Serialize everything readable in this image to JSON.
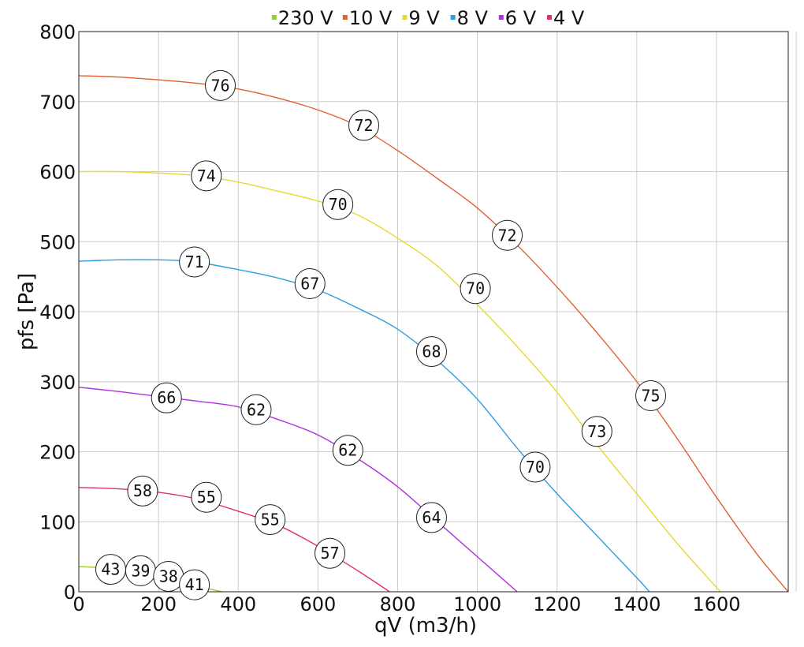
{
  "chart_data": {
    "type": "line",
    "xlabel": "qV (m3/h)",
    "ylabel": "pfs [Pa]",
    "xlim": [
      0,
      1780
    ],
    "ylim": [
      0,
      800
    ],
    "xticks": [
      0,
      200,
      400,
      600,
      800,
      1000,
      1200,
      1400,
      1600
    ],
    "yticks": [
      0,
      100,
      200,
      300,
      400,
      500,
      600,
      700,
      800
    ],
    "grid": true,
    "legend_position": "top-center",
    "series": [
      {
        "name": "230 V",
        "color": "#9acd32",
        "points": [
          [
            0,
            36
          ],
          [
            60,
            34
          ],
          [
            120,
            30
          ],
          [
            200,
            22
          ],
          [
            280,
            10
          ],
          [
            360,
            0
          ]
        ],
        "labels": [
          {
            "x": 80,
            "y": 32,
            "text": "43"
          },
          {
            "x": 155,
            "y": 30,
            "text": "39"
          },
          {
            "x": 225,
            "y": 22,
            "text": "38"
          },
          {
            "x": 290,
            "y": 10,
            "text": "41"
          }
        ]
      },
      {
        "name": "10 V",
        "color": "#e06030",
        "points": [
          [
            0,
            737
          ],
          [
            100,
            735
          ],
          [
            200,
            731
          ],
          [
            300,
            726
          ],
          [
            400,
            718
          ],
          [
            500,
            705
          ],
          [
            600,
            688
          ],
          [
            700,
            665
          ],
          [
            800,
            630
          ],
          [
            900,
            590
          ],
          [
            1000,
            548
          ],
          [
            1100,
            495
          ],
          [
            1200,
            435
          ],
          [
            1300,
            370
          ],
          [
            1400,
            300
          ],
          [
            1500,
            220
          ],
          [
            1600,
            135
          ],
          [
            1700,
            55
          ],
          [
            1780,
            0
          ]
        ],
        "labels": [
          {
            "x": 355,
            "y": 723,
            "text": "76"
          },
          {
            "x": 715,
            "y": 666,
            "text": "72"
          },
          {
            "x": 1075,
            "y": 509,
            "text": "72"
          },
          {
            "x": 1435,
            "y": 280,
            "text": "75"
          }
        ]
      },
      {
        "name": "9 V",
        "color": "#e8d830",
        "points": [
          [
            0,
            600
          ],
          [
            100,
            600
          ],
          [
            200,
            598
          ],
          [
            300,
            594
          ],
          [
            400,
            585
          ],
          [
            500,
            572
          ],
          [
            600,
            558
          ],
          [
            700,
            538
          ],
          [
            800,
            505
          ],
          [
            900,
            465
          ],
          [
            1000,
            410
          ],
          [
            1100,
            350
          ],
          [
            1200,
            285
          ],
          [
            1300,
            210
          ],
          [
            1400,
            140
          ],
          [
            1500,
            70
          ],
          [
            1610,
            0
          ]
        ],
        "labels": [
          {
            "x": 320,
            "y": 594,
            "text": "74"
          },
          {
            "x": 650,
            "y": 553,
            "text": "70"
          },
          {
            "x": 995,
            "y": 433,
            "text": "70"
          },
          {
            "x": 1300,
            "y": 229,
            "text": "73"
          }
        ]
      },
      {
        "name": "8 V",
        "color": "#2e9ce0",
        "points": [
          [
            0,
            472
          ],
          [
            100,
            474
          ],
          [
            200,
            474
          ],
          [
            290,
            471
          ],
          [
            400,
            460
          ],
          [
            500,
            448
          ],
          [
            600,
            431
          ],
          [
            700,
            405
          ],
          [
            800,
            375
          ],
          [
            900,
            330
          ],
          [
            1000,
            275
          ],
          [
            1100,
            205
          ],
          [
            1200,
            140
          ],
          [
            1300,
            80
          ],
          [
            1400,
            20
          ],
          [
            1432,
            0
          ]
        ],
        "labels": [
          {
            "x": 290,
            "y": 471,
            "text": "71"
          },
          {
            "x": 580,
            "y": 440,
            "text": "67"
          },
          {
            "x": 885,
            "y": 343,
            "text": "68"
          },
          {
            "x": 1145,
            "y": 178,
            "text": "70"
          }
        ]
      },
      {
        "name": "6 V",
        "color": "#b030e0",
        "points": [
          [
            0,
            292
          ],
          [
            100,
            286
          ],
          [
            200,
            279
          ],
          [
            300,
            272
          ],
          [
            400,
            264
          ],
          [
            500,
            246
          ],
          [
            600,
            224
          ],
          [
            700,
            190
          ],
          [
            800,
            150
          ],
          [
            900,
            100
          ],
          [
            1000,
            50
          ],
          [
            1100,
            0
          ]
        ],
        "labels": [
          {
            "x": 220,
            "y": 277,
            "text": "66"
          },
          {
            "x": 445,
            "y": 260,
            "text": "62"
          },
          {
            "x": 675,
            "y": 202,
            "text": "62"
          },
          {
            "x": 885,
            "y": 106,
            "text": "64"
          }
        ]
      },
      {
        "name": "4 V",
        "color": "#e0306a",
        "points": [
          [
            0,
            149
          ],
          [
            100,
            147
          ],
          [
            200,
            142
          ],
          [
            300,
            132
          ],
          [
            400,
            115
          ],
          [
            500,
            95
          ],
          [
            600,
            65
          ],
          [
            700,
            30
          ],
          [
            780,
            0
          ]
        ],
        "labels": [
          {
            "x": 160,
            "y": 144,
            "text": "58"
          },
          {
            "x": 320,
            "y": 135,
            "text": "55"
          },
          {
            "x": 480,
            "y": 103,
            "text": "55"
          },
          {
            "x": 630,
            "y": 55,
            "text": "57"
          }
        ]
      }
    ]
  }
}
